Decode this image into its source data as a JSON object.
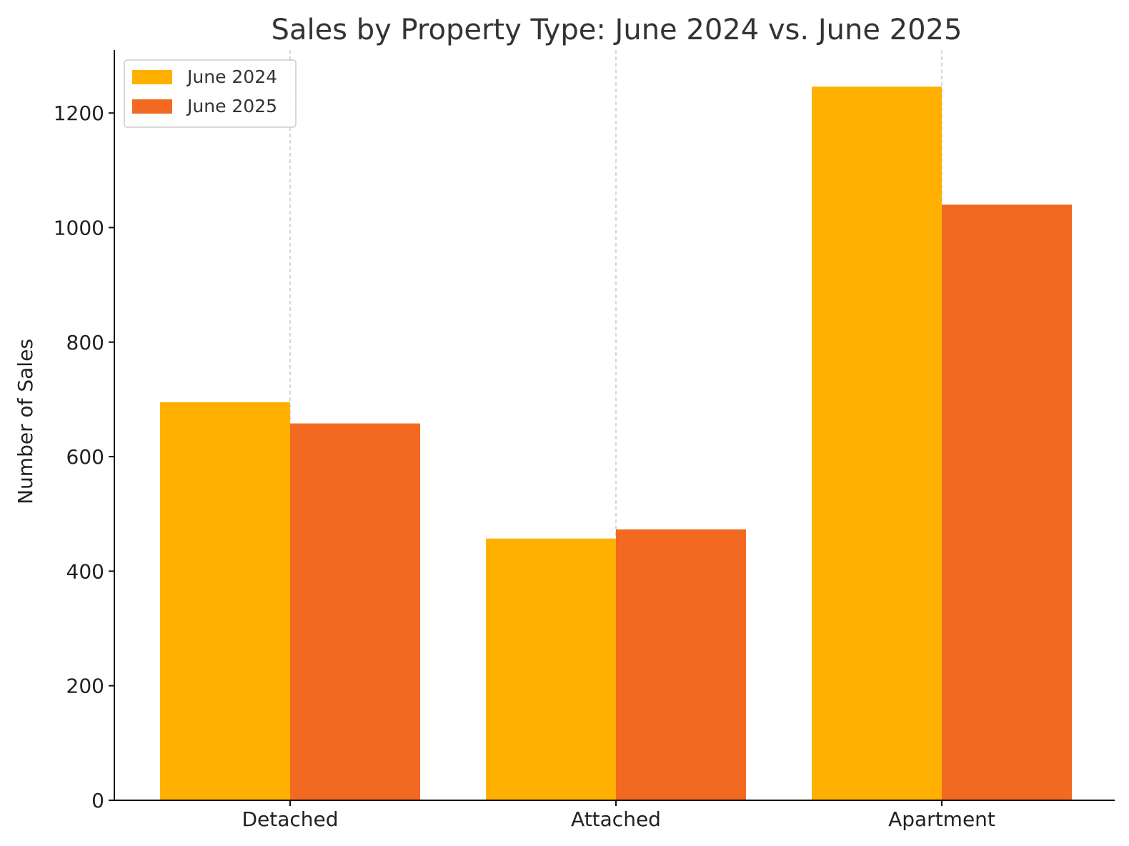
{
  "chart_data": {
    "type": "bar",
    "title": "Sales by Property Type: June 2024 vs. June 2025",
    "xlabel": "",
    "ylabel": "Number of Sales",
    "categories": [
      "Detached",
      "Attached",
      "Apartment"
    ],
    "series": [
      {
        "name": "June 2024",
        "values": [
          695,
          457,
          1246
        ],
        "color": "#FFB000"
      },
      {
        "name": "June 2025",
        "values": [
          658,
          473,
          1040
        ],
        "color": "#F26A21"
      }
    ],
    "ylim": [
      0,
      1310
    ],
    "yticks": [
      0,
      200,
      400,
      600,
      800,
      1000,
      1200
    ],
    "grid": "x-dashed",
    "legend_position": "top-left"
  }
}
